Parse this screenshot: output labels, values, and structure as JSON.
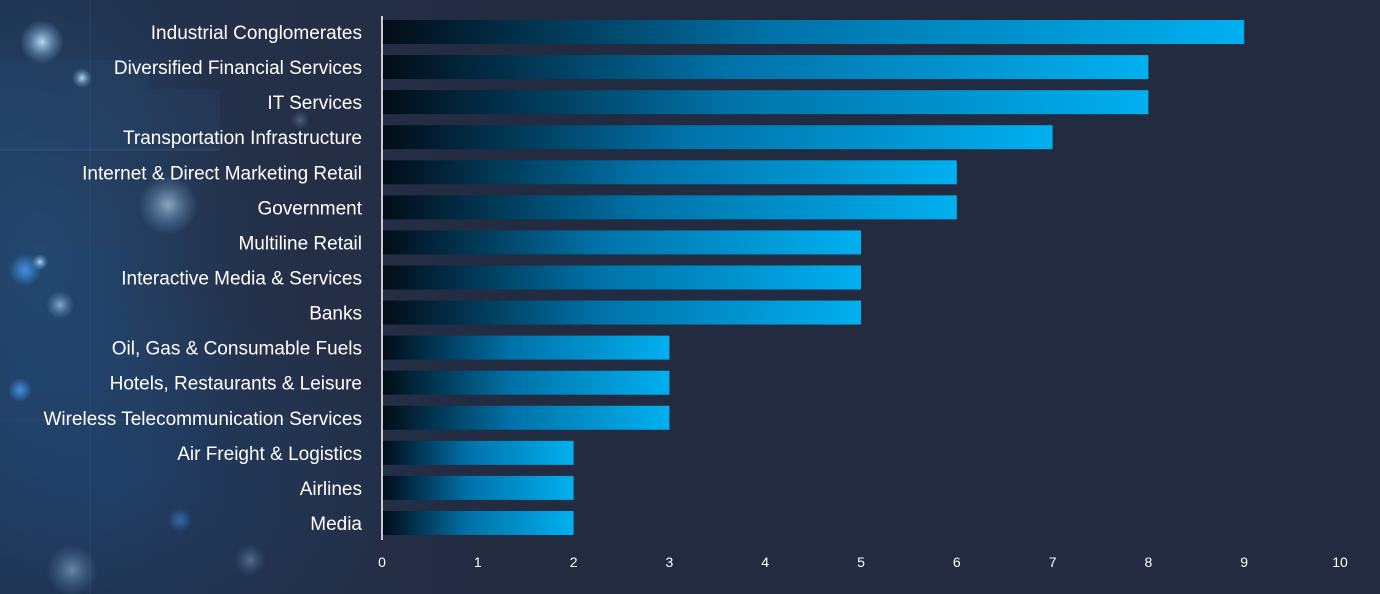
{
  "chart_data": {
    "type": "bar",
    "orientation": "horizontal",
    "title": "",
    "xlabel": "",
    "ylabel": "",
    "categories": [
      "Industrial Conglomerates",
      "Diversified Financial Services",
      "IT Services",
      "Transportation Infrastructure",
      "Internet & Direct Marketing Retail",
      "Government",
      "Multiline Retail",
      "Interactive Media & Services",
      "Banks",
      "Oil, Gas & Consumable Fuels",
      "Hotels, Restaurants & Leisure",
      "Wireless Telecommunication Services",
      "Air Freight & Logistics",
      "Airlines",
      "Media"
    ],
    "values": [
      9,
      8,
      8,
      7,
      6,
      6,
      5,
      5,
      5,
      3,
      3,
      3,
      2,
      2,
      2
    ],
    "xlim": [
      0,
      10
    ],
    "xticks": [
      "0",
      "1",
      "2",
      "3",
      "4",
      "5",
      "6",
      "7",
      "8",
      "9",
      "10"
    ],
    "grid": false,
    "legend": "none",
    "colors": {
      "bar_start": "#020d18",
      "bar_end": "#00b0f0",
      "axis": "#ffffff",
      "text": "#ffffff"
    }
  }
}
